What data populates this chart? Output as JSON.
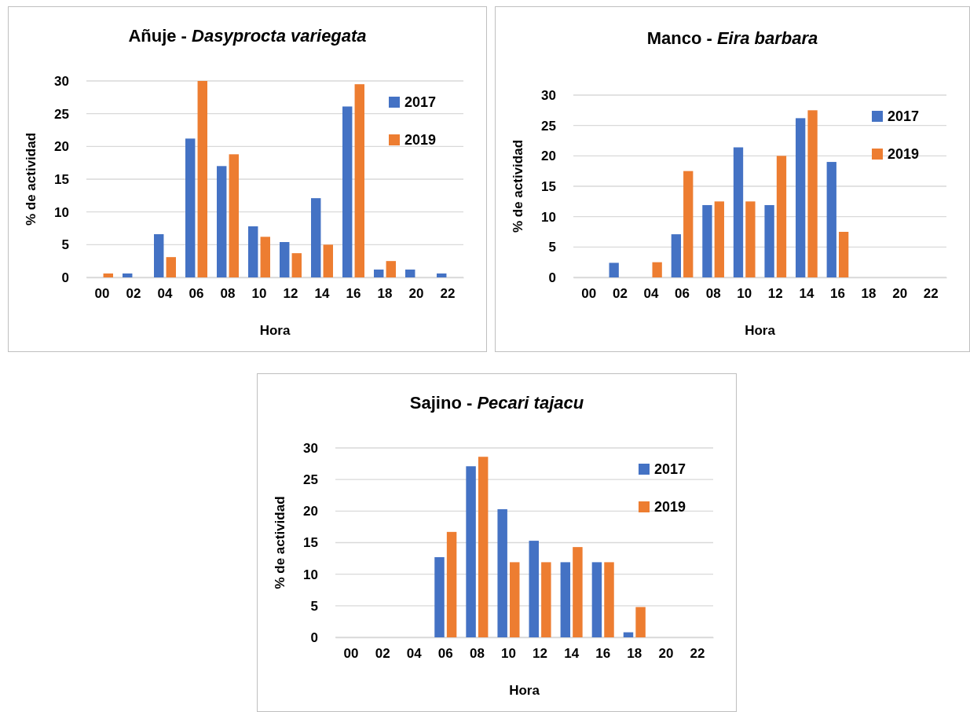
{
  "chart_data": [
    {
      "type": "bar",
      "title": "Añuje - Dasyprocta variegata",
      "xlabel": "Hora",
      "ylabel": "% de actividad",
      "categories": [
        "00",
        "02",
        "04",
        "06",
        "08",
        "10",
        "12",
        "14",
        "16",
        "18",
        "20",
        "22"
      ],
      "series": [
        {
          "name": "2017",
          "color": "#4472c4",
          "values": [
            0,
            0.6,
            6.6,
            21.2,
            17,
            7.8,
            5.4,
            12.1,
            26.1,
            1.2,
            1.2,
            0.6
          ]
        },
        {
          "name": "2019",
          "color": "#ed7d31",
          "values": [
            0.6,
            0,
            3.1,
            30,
            18.8,
            6.2,
            3.7,
            5,
            29.5,
            2.5,
            0,
            0
          ]
        }
      ],
      "ylim": [
        0,
        30
      ],
      "yticks": [
        0,
        5,
        10,
        15,
        20,
        25,
        30
      ],
      "grid": "y",
      "legend": "top right"
    },
    {
      "type": "bar",
      "title": "Manco - Eira barbara",
      "xlabel": "Hora",
      "ylabel": "% de actividad",
      "categories": [
        "00",
        "02",
        "04",
        "06",
        "08",
        "10",
        "12",
        "14",
        "16",
        "18",
        "20",
        "22"
      ],
      "series": [
        {
          "name": "2017",
          "color": "#4472c4",
          "values": [
            0,
            2.4,
            0,
            7.1,
            11.9,
            21.4,
            11.9,
            26.2,
            19,
            0,
            0,
            0
          ]
        },
        {
          "name": "2019",
          "color": "#ed7d31",
          "values": [
            0,
            0,
            2.5,
            17.5,
            12.5,
            12.5,
            20,
            27.5,
            7.5,
            0,
            0,
            0
          ]
        }
      ],
      "ylim": [
        0,
        30
      ],
      "yticks": [
        0,
        5,
        10,
        15,
        20,
        25,
        30
      ],
      "grid": "y",
      "legend": "top right"
    },
    {
      "type": "bar",
      "title": "Sajino - Pecari tajacu",
      "xlabel": "Hora",
      "ylabel": "% de actividad",
      "categories": [
        "00",
        "02",
        "04",
        "06",
        "08",
        "10",
        "12",
        "14",
        "16",
        "18",
        "20",
        "22"
      ],
      "series": [
        {
          "name": "2017",
          "color": "#4472c4",
          "values": [
            0,
            0,
            0,
            12.7,
            27.1,
            20.3,
            15.3,
            11.9,
            11.9,
            0.8,
            0,
            0
          ]
        },
        {
          "name": "2019",
          "color": "#ed7d31",
          "values": [
            0,
            0,
            0,
            16.7,
            28.6,
            11.9,
            11.9,
            14.3,
            11.9,
            4.8,
            0,
            0
          ]
        }
      ],
      "ylim": [
        0,
        30
      ],
      "yticks": [
        0,
        5,
        10,
        15,
        20,
        25,
        30
      ],
      "grid": "y",
      "legend": "top right"
    }
  ]
}
